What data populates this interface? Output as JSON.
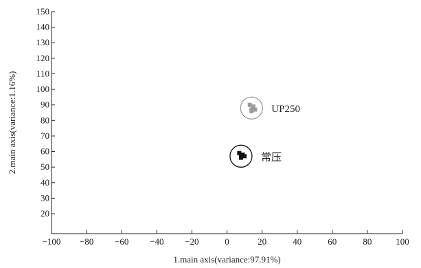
{
  "chart_data": {
    "type": "scatter",
    "xlabel": "1.main axis(variance:97.91%)",
    "ylabel": "2.main axis(variance:1.16%)",
    "xlim": [
      -100,
      100
    ],
    "ylim": [
      10,
      150
    ],
    "xticks": [
      -100,
      -80,
      -60,
      -40,
      -20,
      0,
      20,
      40,
      60,
      80,
      100
    ],
    "yticks": [
      20,
      30,
      40,
      50,
      60,
      70,
      80,
      90,
      100,
      110,
      120,
      130,
      140,
      150
    ],
    "grid": false,
    "groups": [
      {
        "label": "UP250",
        "color": "#9a9a9a",
        "center": [
          14,
          88
        ],
        "points": [
          [
            13,
            90
          ],
          [
            15,
            89
          ],
          [
            14,
            87
          ],
          [
            16,
            87
          ],
          [
            14,
            86
          ]
        ]
      },
      {
        "label": "常压",
        "color": "#111111",
        "center": [
          8,
          57
        ],
        "points": [
          [
            7,
            59
          ],
          [
            9,
            58
          ],
          [
            8,
            57
          ],
          [
            10,
            57
          ],
          [
            8,
            56
          ]
        ]
      }
    ]
  }
}
